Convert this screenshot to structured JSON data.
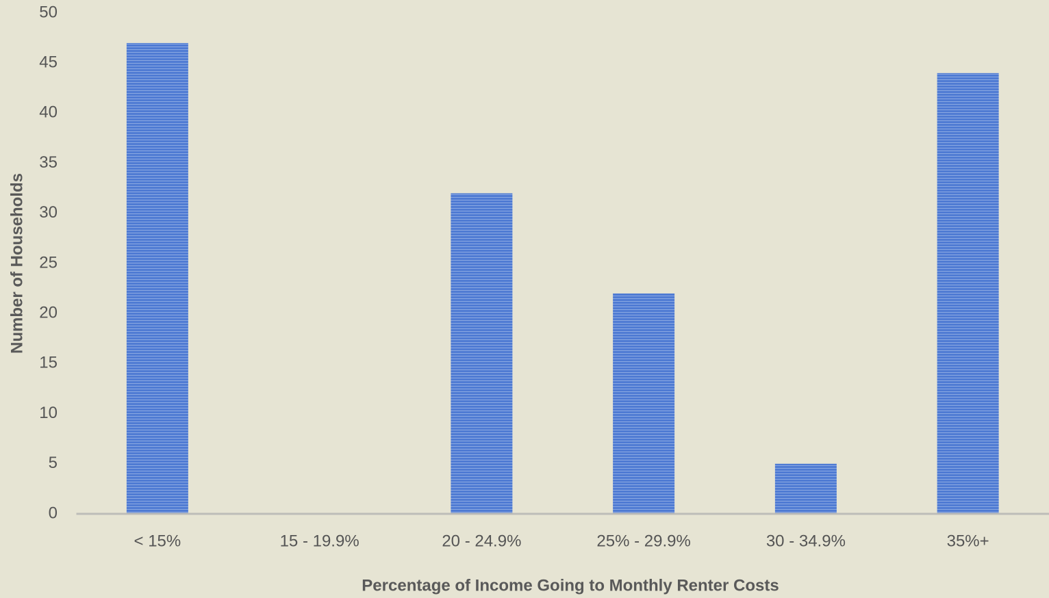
{
  "chart_data": {
    "type": "bar",
    "x_label": "Percentage of Income Going to Monthly Renter Costs",
    "y_label": "Number of Households",
    "categories": [
      "< 15%",
      "15 - 19.9%",
      "20 - 24.9%",
      "25% - 29.9%",
      "30 - 34.9%",
      "35%+"
    ],
    "values": [
      47,
      0,
      32,
      22,
      5,
      44
    ],
    "color": "#4f7bd3",
    "ylim": [
      0,
      50
    ],
    "yticks": [
      0,
      5,
      10,
      15,
      20,
      25,
      30,
      35,
      40,
      45,
      50
    ],
    "grid": false
  }
}
